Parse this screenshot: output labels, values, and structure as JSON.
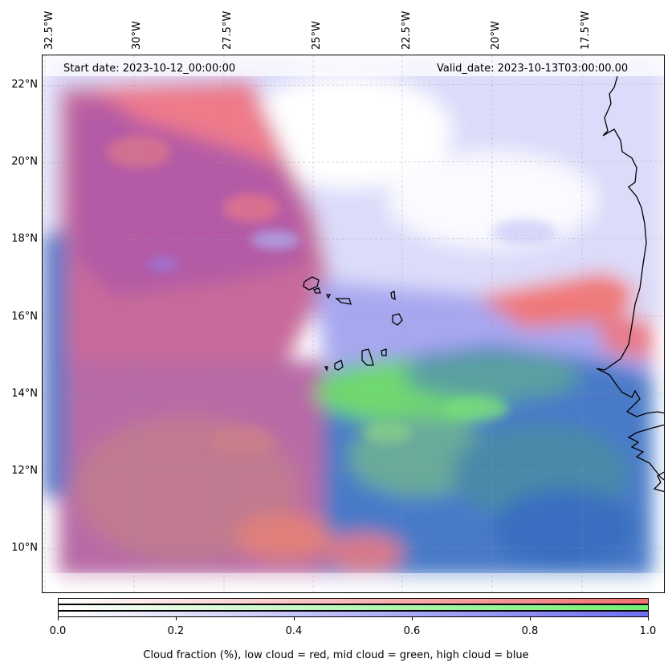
{
  "map": {
    "start_date": "Start date: 2023-10-12_00:00:00",
    "valid_date": "Valid_date: 2023-10-13T03:00:00.00",
    "lon_labels": [
      "32.5°W",
      "30°W",
      "27.5°W",
      "25°W",
      "22.5°W",
      "20°W",
      "17.5°W"
    ],
    "lat_labels": [
      "22°N",
      "20°N",
      "18°N",
      "16°N",
      "14°N",
      "12°N",
      "10°N"
    ],
    "colors": {
      "low_cloud": "#f07070",
      "mid_cloud": "#70f070",
      "high_cloud": "#7070f0",
      "coastline": "#000000"
    }
  },
  "colorbar": {
    "ticks": [
      "0.0",
      "0.2",
      "0.4",
      "0.6",
      "0.8",
      "1.0"
    ],
    "label": "Cloud fraction (%), low cloud = red, mid cloud = green, high cloud = blue"
  }
}
